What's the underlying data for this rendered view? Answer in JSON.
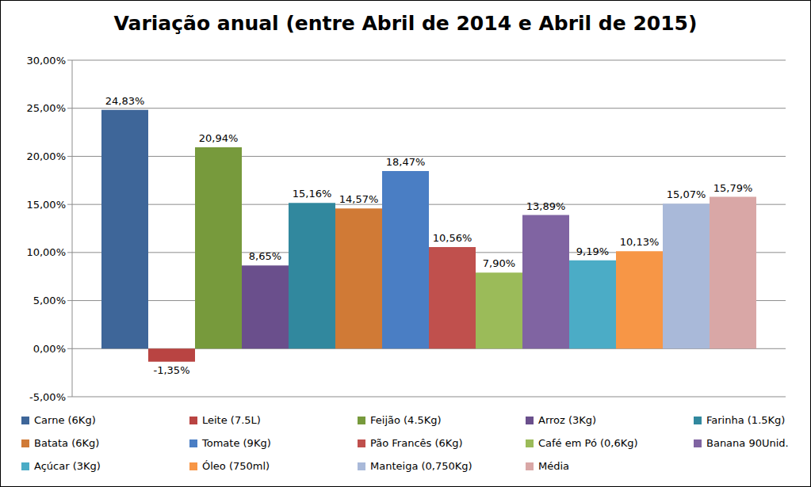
{
  "chart_data": {
    "type": "bar",
    "title": "Variação anual (entre Abril de 2014 e Abril de 2015)",
    "categories": [
      "Carne (6Kg)",
      "Leite (7.5L)",
      "Feijão (4.5Kg)",
      "Arroz (3Kg)",
      "Farinha (1.5Kg)",
      "Batata (6Kg)",
      "Tomate (9Kg)",
      "Pão Francês (6Kg)",
      "Café em Pó (0,6Kg)",
      "Banana 90Unid.",
      "Açúcar (3Kg)",
      "Óleo (750ml)",
      "Manteiga (0,750Kg)",
      "Média"
    ],
    "values": [
      24.83,
      -1.35,
      20.94,
      8.65,
      15.16,
      14.57,
      18.47,
      10.56,
      7.9,
      13.89,
      9.19,
      10.13,
      15.07,
      15.79
    ],
    "value_labels": [
      "24,83%",
      "-1,35%",
      "20,94%",
      "8,65%",
      "15,16%",
      "14,57%",
      "18,47%",
      "10,56%",
      "7,90%",
      "13,89%",
      "9,19%",
      "10,13%",
      "15,07%",
      "15,79%"
    ],
    "colors": [
      "#3e6699",
      "#b94442",
      "#779a3c",
      "#6a4f8c",
      "#31889e",
      "#d07a36",
      "#4a7ec4",
      "#c0504d",
      "#9bbb59",
      "#8064a2",
      "#4bacc6",
      "#f79646",
      "#a9b9d9",
      "#d9a7a6"
    ],
    "ylim": [
      -5,
      30
    ],
    "yticks": [
      {
        "value": -5,
        "label": "-5,00%"
      },
      {
        "value": 0,
        "label": "0,00%"
      },
      {
        "value": 5,
        "label": "5,00%"
      },
      {
        "value": 10,
        "label": "10,00%"
      },
      {
        "value": 15,
        "label": "15,00%"
      },
      {
        "value": 20,
        "label": "20,00%"
      },
      {
        "value": 25,
        "label": "25,00%"
      },
      {
        "value": 30,
        "label": "30,00%"
      }
    ],
    "grid": true,
    "data_labels": true,
    "tick_labels": "y",
    "legend": "bottom"
  }
}
